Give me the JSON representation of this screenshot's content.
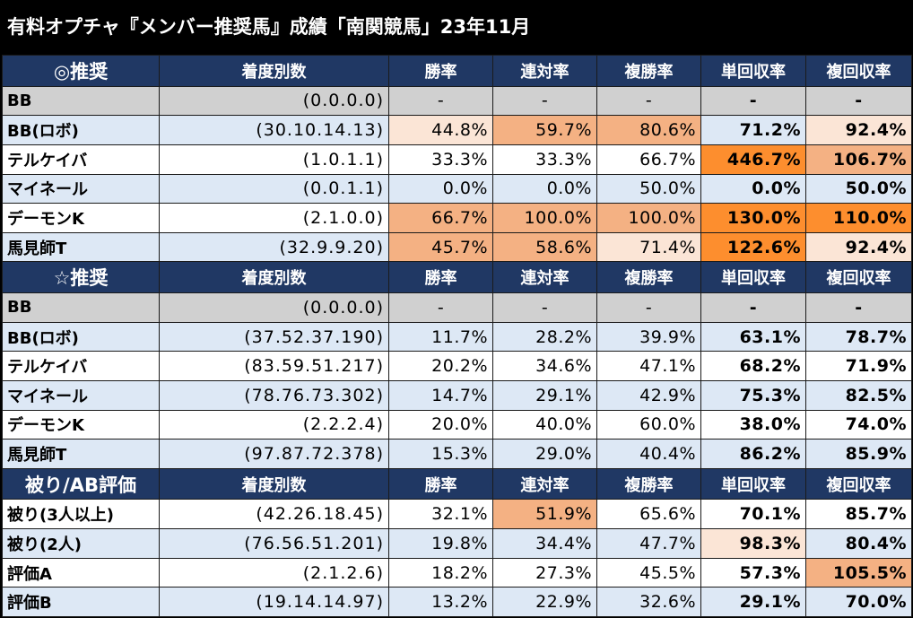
{
  "title": "有料オプチャ『メンバー推奨馬』成績「南関競馬」23年11月",
  "columns": [
    "着度別数",
    "勝率",
    "連対率",
    "複勝率",
    "単回収率",
    "複回収率"
  ],
  "colors": {
    "header_bg": "#203864",
    "row_alt": "#dde8f5",
    "row_na": "#d0d0d0",
    "light": "#fbe5d6",
    "mid": "#f4b183",
    "strong": "#fd8e2e"
  },
  "sections": [
    {
      "label": "◎推奨",
      "rows": [
        {
          "name": "BB",
          "record": "(0.0.0.0)",
          "values": [
            "-",
            "-",
            "-",
            "-",
            "-"
          ],
          "hl": [
            "",
            "",
            "",
            "",
            ""
          ]
        },
        {
          "name": "BB(ロボ)",
          "record": "(30.10.14.13)",
          "values": [
            "44.8%",
            "59.7%",
            "80.6%",
            "71.2%",
            "92.4%"
          ],
          "hl": [
            "A",
            "B",
            "B",
            "",
            "A"
          ]
        },
        {
          "name": "テルケイバ",
          "record": "(1.0.1.1)",
          "values": [
            "33.3%",
            "33.3%",
            "66.7%",
            "446.7%",
            "106.7%"
          ],
          "hl": [
            "",
            "",
            "",
            "C",
            "B"
          ]
        },
        {
          "name": "マイネール",
          "record": "(0.0.1.1)",
          "values": [
            "0.0%",
            "0.0%",
            "50.0%",
            "0.0%",
            "50.0%"
          ],
          "hl": [
            "",
            "",
            "",
            "",
            ""
          ]
        },
        {
          "name": "デーモンK",
          "record": "(2.1.0.0)",
          "values": [
            "66.7%",
            "100.0%",
            "100.0%",
            "130.0%",
            "110.0%"
          ],
          "hl": [
            "B",
            "B",
            "B",
            "C",
            "C"
          ]
        },
        {
          "name": "馬見師T",
          "record": "(32.9.9.20)",
          "values": [
            "45.7%",
            "58.6%",
            "71.4%",
            "122.6%",
            "92.4%"
          ],
          "hl": [
            "B",
            "B",
            "A",
            "C",
            "A"
          ]
        }
      ]
    },
    {
      "label": "☆推奨",
      "rows": [
        {
          "name": "BB",
          "record": "(0.0.0.0)",
          "values": [
            "-",
            "-",
            "-",
            "-",
            "-"
          ],
          "hl": [
            "",
            "",
            "",
            "",
            ""
          ]
        },
        {
          "name": "BB(ロボ)",
          "record": "(37.52.37.190)",
          "values": [
            "11.7%",
            "28.2%",
            "39.9%",
            "63.1%",
            "78.7%"
          ],
          "hl": [
            "",
            "",
            "",
            "",
            ""
          ]
        },
        {
          "name": "テルケイバ",
          "record": "(83.59.51.217)",
          "values": [
            "20.2%",
            "34.6%",
            "47.1%",
            "68.2%",
            "71.9%"
          ],
          "hl": [
            "",
            "",
            "",
            "",
            ""
          ]
        },
        {
          "name": "マイネール",
          "record": "(78.76.73.302)",
          "values": [
            "14.7%",
            "29.1%",
            "42.9%",
            "75.3%",
            "82.5%"
          ],
          "hl": [
            "",
            "",
            "",
            "",
            ""
          ]
        },
        {
          "name": "デーモンK",
          "record": "(2.2.2.4)",
          "values": [
            "20.0%",
            "40.0%",
            "60.0%",
            "38.0%",
            "74.0%"
          ],
          "hl": [
            "",
            "",
            "",
            "",
            ""
          ]
        },
        {
          "name": "馬見師T",
          "record": "(97.87.72.378)",
          "values": [
            "15.3%",
            "29.0%",
            "40.4%",
            "86.2%",
            "85.9%"
          ],
          "hl": [
            "",
            "",
            "",
            "",
            ""
          ]
        }
      ]
    },
    {
      "label": "被り/AB評価",
      "rows": [
        {
          "name": "被り(3人以上)",
          "record": "(42.26.18.45)",
          "values": [
            "32.1%",
            "51.9%",
            "65.6%",
            "70.1%",
            "85.7%"
          ],
          "hl": [
            "",
            "B",
            "",
            "",
            ""
          ]
        },
        {
          "name": "被り(2人)",
          "record": "(76.56.51.201)",
          "values": [
            "19.8%",
            "34.4%",
            "47.7%",
            "98.3%",
            "80.4%"
          ],
          "hl": [
            "",
            "",
            "",
            "A",
            ""
          ]
        },
        {
          "name": "評価A",
          "record": "(2.1.2.6)",
          "values": [
            "18.2%",
            "27.3%",
            "45.5%",
            "57.3%",
            "105.5%"
          ],
          "hl": [
            "",
            "",
            "",
            "",
            "B"
          ]
        },
        {
          "name": "評価B",
          "record": "(19.14.14.97)",
          "values": [
            "13.2%",
            "22.9%",
            "32.6%",
            "29.1%",
            "70.0%"
          ],
          "hl": [
            "",
            "",
            "",
            "",
            ""
          ]
        }
      ]
    }
  ]
}
